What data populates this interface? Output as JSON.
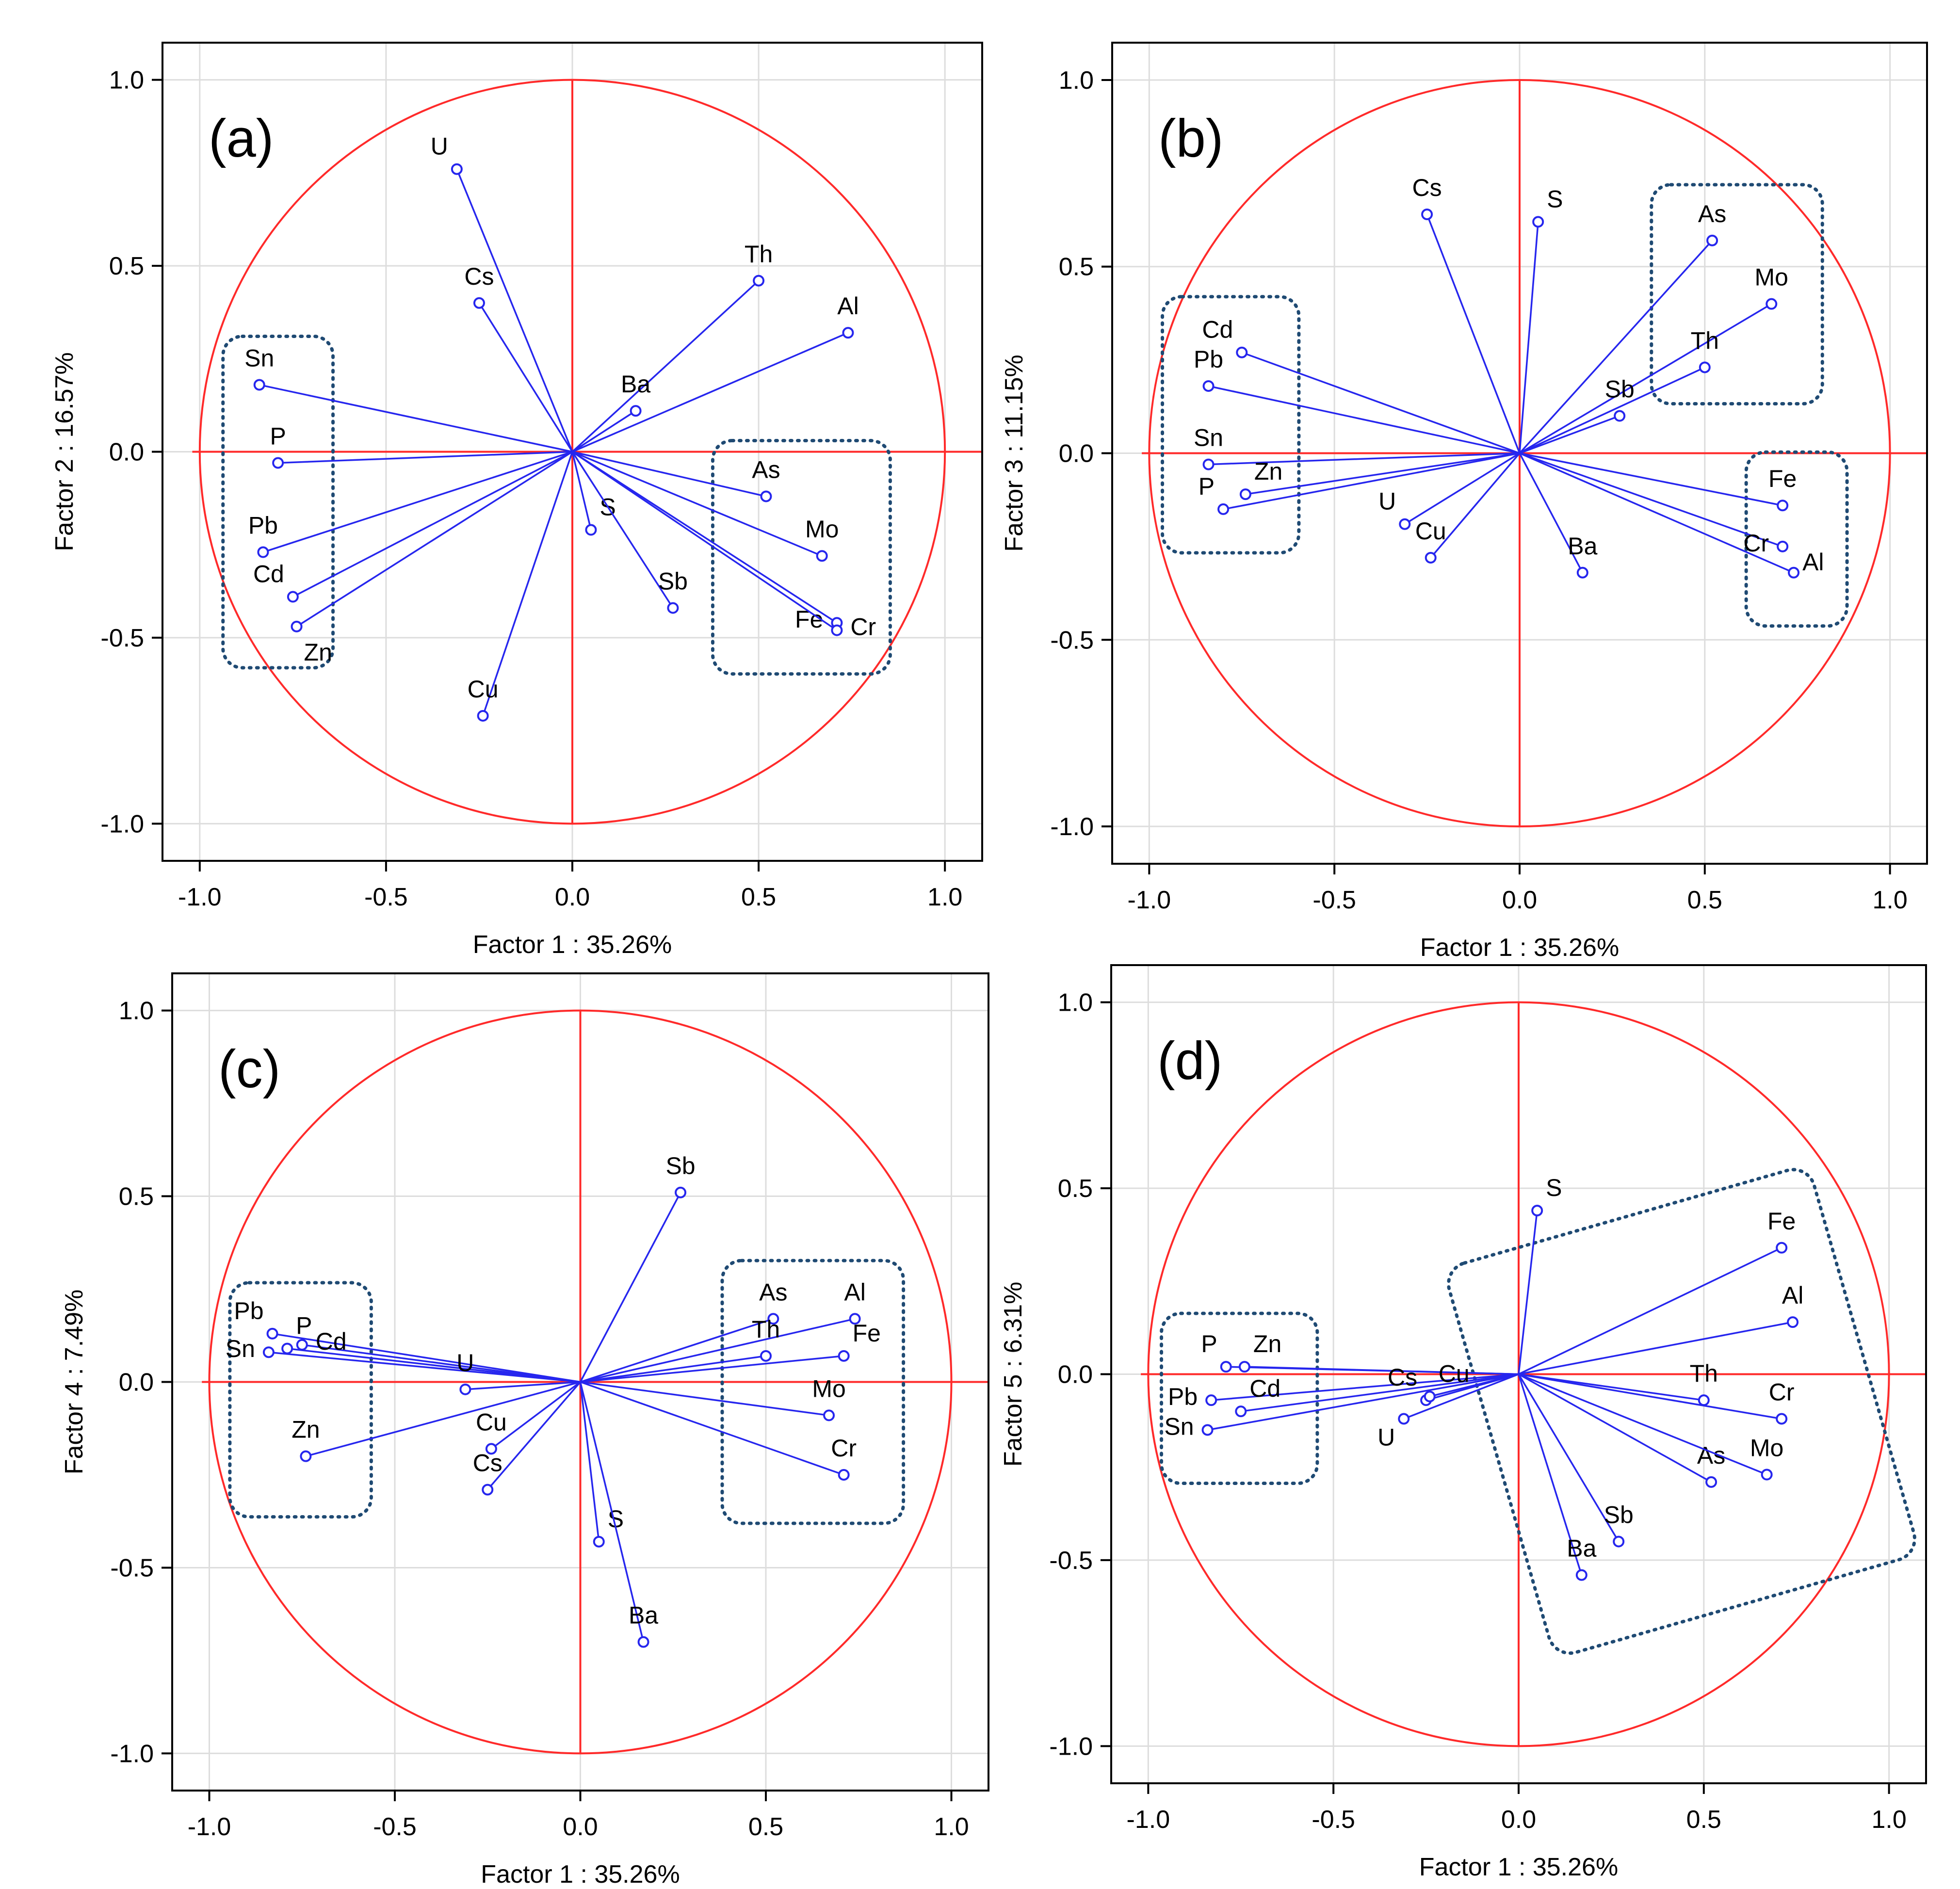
{
  "figure": {
    "colors": {
      "circle": "#ff2a2a",
      "axis_cross": "#ff2a2a",
      "vector": "#2626ee",
      "marker": "#2626ee",
      "box": "#1f4a73",
      "grid": "#dddddd",
      "frame": "#000000",
      "text": "#000000"
    }
  },
  "chart_data": [
    {
      "type": "scatter",
      "panel": "(a)",
      "title": "",
      "xlabel": "Factor 1 : 35.26%",
      "ylabel": "Factor 2 : 16.57%",
      "xlim": [
        -1.1,
        1.1
      ],
      "ylim": [
        -1.1,
        1.1
      ],
      "xticks": [
        "-1.0",
        "-0.5",
        "0.0",
        "0.5",
        "1.0"
      ],
      "yticks": [
        "1.0",
        "0.5",
        "0.0",
        "-0.5",
        "-1.0"
      ],
      "grid": true,
      "unit_circle": true,
      "points": [
        {
          "label": "U",
          "x": -0.31,
          "y": 0.76
        },
        {
          "label": "Cs",
          "x": -0.25,
          "y": 0.4
        },
        {
          "label": "Th",
          "x": 0.5,
          "y": 0.46
        },
        {
          "label": "Al",
          "x": 0.74,
          "y": 0.32
        },
        {
          "label": "Ba",
          "x": 0.17,
          "y": 0.11
        },
        {
          "label": "Sn",
          "x": -0.84,
          "y": 0.18
        },
        {
          "label": "P",
          "x": -0.79,
          "y": -0.03
        },
        {
          "label": "Pb",
          "x": -0.83,
          "y": -0.27
        },
        {
          "label": "Cd",
          "x": -0.75,
          "y": -0.39
        },
        {
          "label": "Zn",
          "x": -0.74,
          "y": -0.47
        },
        {
          "label": "S",
          "x": 0.05,
          "y": -0.21
        },
        {
          "label": "Sb",
          "x": 0.27,
          "y": -0.42
        },
        {
          "label": "As",
          "x": 0.52,
          "y": -0.12
        },
        {
          "label": "Mo",
          "x": 0.67,
          "y": -0.28
        },
        {
          "label": "Fe",
          "x": 0.71,
          "y": -0.46
        },
        {
          "label": "Cr",
          "x": 0.71,
          "y": -0.48
        },
        {
          "label": "Cu",
          "x": -0.24,
          "y": -0.71
        }
      ],
      "groups": [
        [
          "Sn",
          "P",
          "Pb",
          "Cd",
          "Zn"
        ],
        [
          "As",
          "Mo",
          "Fe",
          "Cr"
        ]
      ]
    },
    {
      "type": "scatter",
      "panel": "(b)",
      "title": "",
      "xlabel": "Factor 1 : 35.26%",
      "ylabel": "Factor 3 : 11.15%",
      "xlim": [
        -1.1,
        1.1
      ],
      "ylim": [
        -1.1,
        1.1
      ],
      "xticks": [
        "-1.0",
        "-0.5",
        "0.0",
        "0.5",
        "1.0"
      ],
      "yticks": [
        "1.0",
        "0.5",
        "0.0",
        "-0.5",
        "-1.0"
      ],
      "grid": true,
      "unit_circle": true,
      "points": [
        {
          "label": "Cs",
          "x": -0.25,
          "y": 0.64
        },
        {
          "label": "S",
          "x": 0.05,
          "y": 0.62
        },
        {
          "label": "As",
          "x": 0.52,
          "y": 0.57
        },
        {
          "label": "Mo",
          "x": 0.68,
          "y": 0.4
        },
        {
          "label": "Th",
          "x": 0.5,
          "y": 0.23
        },
        {
          "label": "Sb",
          "x": 0.27,
          "y": 0.1
        },
        {
          "label": "Cd",
          "x": -0.75,
          "y": 0.27
        },
        {
          "label": "Pb",
          "x": -0.84,
          "y": 0.18
        },
        {
          "label": "Sn",
          "x": -0.84,
          "y": -0.03
        },
        {
          "label": "Zn",
          "x": -0.74,
          "y": -0.11
        },
        {
          "label": "P",
          "x": -0.8,
          "y": -0.15
        },
        {
          "label": "U",
          "x": -0.31,
          "y": -0.19
        },
        {
          "label": "Cu",
          "x": -0.24,
          "y": -0.28
        },
        {
          "label": "Ba",
          "x": 0.17,
          "y": -0.32
        },
        {
          "label": "Fe",
          "x": 0.71,
          "y": -0.14
        },
        {
          "label": "Cr",
          "x": 0.71,
          "y": -0.25
        },
        {
          "label": "Al",
          "x": 0.74,
          "y": -0.32
        }
      ],
      "groups": [
        [
          "Cd",
          "Pb",
          "Sn",
          "Zn",
          "P"
        ],
        [
          "As",
          "Mo",
          "Th"
        ],
        [
          "Fe",
          "Cr",
          "Al"
        ]
      ]
    },
    {
      "type": "scatter",
      "panel": "(c)",
      "title": "",
      "xlabel": "Factor 1 : 35.26%",
      "ylabel": "Factor 4 :  7.49%",
      "xlim": [
        -1.1,
        1.1
      ],
      "ylim": [
        -1.1,
        1.1
      ],
      "xticks": [
        "-1.0",
        "-0.5",
        "0.0",
        "0.5",
        "1.0"
      ],
      "yticks": [
        "1.0",
        "0.5",
        "0.0",
        "-0.5",
        "-1.0"
      ],
      "grid": true,
      "unit_circle": true,
      "points": [
        {
          "label": "Sb",
          "x": 0.27,
          "y": 0.51
        },
        {
          "label": "As",
          "x": 0.52,
          "y": 0.17
        },
        {
          "label": "Al",
          "x": 0.74,
          "y": 0.17
        },
        {
          "label": "Th",
          "x": 0.5,
          "y": 0.07
        },
        {
          "label": "Fe",
          "x": 0.71,
          "y": 0.07
        },
        {
          "label": "Mo",
          "x": 0.67,
          "y": -0.09
        },
        {
          "label": "Cr",
          "x": 0.71,
          "y": -0.25
        },
        {
          "label": "Pb",
          "x": -0.83,
          "y": 0.13
        },
        {
          "label": "P",
          "x": -0.79,
          "y": 0.09
        },
        {
          "label": "Cd",
          "x": -0.75,
          "y": 0.1
        },
        {
          "label": "Sn",
          "x": -0.84,
          "y": 0.08
        },
        {
          "label": "U",
          "x": -0.31,
          "y": -0.02
        },
        {
          "label": "Zn",
          "x": -0.74,
          "y": -0.2
        },
        {
          "label": "Cu",
          "x": -0.24,
          "y": -0.18
        },
        {
          "label": "Cs",
          "x": -0.25,
          "y": -0.29
        },
        {
          "label": "S",
          "x": 0.05,
          "y": -0.43
        },
        {
          "label": "Ba",
          "x": 0.17,
          "y": -0.7
        }
      ],
      "groups": [
        [
          "Pb",
          "P",
          "Cd",
          "Sn",
          "Zn"
        ],
        [
          "As",
          "Al",
          "Th",
          "Fe",
          "Mo",
          "Cr"
        ]
      ]
    },
    {
      "type": "scatter",
      "panel": "(d)",
      "title": "",
      "xlabel": "Factor 1 : 35.26%",
      "ylabel": "Factor 5 :  6.31%",
      "xlim": [
        -1.1,
        1.1
      ],
      "ylim": [
        -1.1,
        1.1
      ],
      "xticks": [
        "-1.0",
        "-0.5",
        "0.0",
        "0.5",
        "1.0"
      ],
      "yticks": [
        "1.0",
        "0.5",
        "0.0",
        "-0.5",
        "-1.0"
      ],
      "grid": true,
      "unit_circle": true,
      "points": [
        {
          "label": "S",
          "x": 0.05,
          "y": 0.44
        },
        {
          "label": "Fe",
          "x": 0.71,
          "y": 0.34
        },
        {
          "label": "Al",
          "x": 0.74,
          "y": 0.14
        },
        {
          "label": "Th",
          "x": 0.5,
          "y": -0.07
        },
        {
          "label": "Cr",
          "x": 0.71,
          "y": -0.12
        },
        {
          "label": "As",
          "x": 0.52,
          "y": -0.29
        },
        {
          "label": "Mo",
          "x": 0.67,
          "y": -0.27
        },
        {
          "label": "Sb",
          "x": 0.27,
          "y": -0.45
        },
        {
          "label": "Ba",
          "x": 0.17,
          "y": -0.54
        },
        {
          "label": "P",
          "x": -0.79,
          "y": 0.02
        },
        {
          "label": "Zn",
          "x": -0.74,
          "y": 0.02
        },
        {
          "label": "Pb",
          "x": -0.83,
          "y": -0.07
        },
        {
          "label": "Cd",
          "x": -0.75,
          "y": -0.1
        },
        {
          "label": "Sn",
          "x": -0.84,
          "y": -0.15
        },
        {
          "label": "U",
          "x": -0.31,
          "y": -0.12
        },
        {
          "label": "Cs",
          "x": -0.25,
          "y": -0.07
        },
        {
          "label": "Cu",
          "x": -0.24,
          "y": -0.06
        }
      ],
      "groups": [
        [
          "P",
          "Zn",
          "Pb",
          "Cd",
          "Sn"
        ],
        [
          "Fe",
          "Al",
          "Th",
          "Cr",
          "As",
          "Mo",
          "Sb",
          "Ba"
        ]
      ]
    }
  ]
}
